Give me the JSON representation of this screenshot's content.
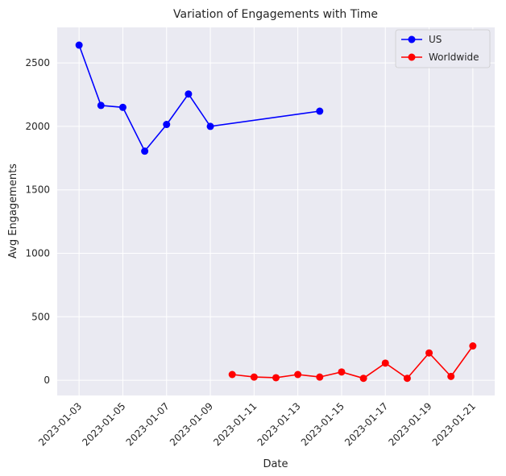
{
  "chart_data": {
    "type": "line",
    "title": "Variation of Engagements with Time",
    "xlabel": "Date",
    "ylabel": "Avg Engagements",
    "xlim": [
      "2023-01-02",
      "2023-01-22"
    ],
    "ylim": [
      -120,
      2780
    ],
    "x_ticks": [
      "2023-01-03",
      "2023-01-05",
      "2023-01-07",
      "2023-01-09",
      "2023-01-11",
      "2023-01-13",
      "2023-01-15",
      "2023-01-17",
      "2023-01-19",
      "2023-01-21"
    ],
    "y_ticks": [
      0,
      500,
      1000,
      1500,
      2000,
      2500
    ],
    "grid": true,
    "legend_position": "top-right",
    "series": [
      {
        "name": "US",
        "color": "#0000ff",
        "x": [
          "2023-01-03",
          "2023-01-04",
          "2023-01-05",
          "2023-01-06",
          "2023-01-07",
          "2023-01-08",
          "2023-01-09",
          "2023-01-14"
        ],
        "y": [
          2640,
          2165,
          2150,
          1805,
          2015,
          2255,
          2000,
          2120
        ]
      },
      {
        "name": "Worldwide",
        "color": "#ff0000",
        "x": [
          "2023-01-10",
          "2023-01-11",
          "2023-01-12",
          "2023-01-13",
          "2023-01-14",
          "2023-01-15",
          "2023-01-16",
          "2023-01-17",
          "2023-01-18",
          "2023-01-19",
          "2023-01-20",
          "2023-01-21"
        ],
        "y": [
          45,
          25,
          20,
          45,
          25,
          65,
          15,
          135,
          15,
          215,
          30,
          270
        ]
      }
    ]
  }
}
